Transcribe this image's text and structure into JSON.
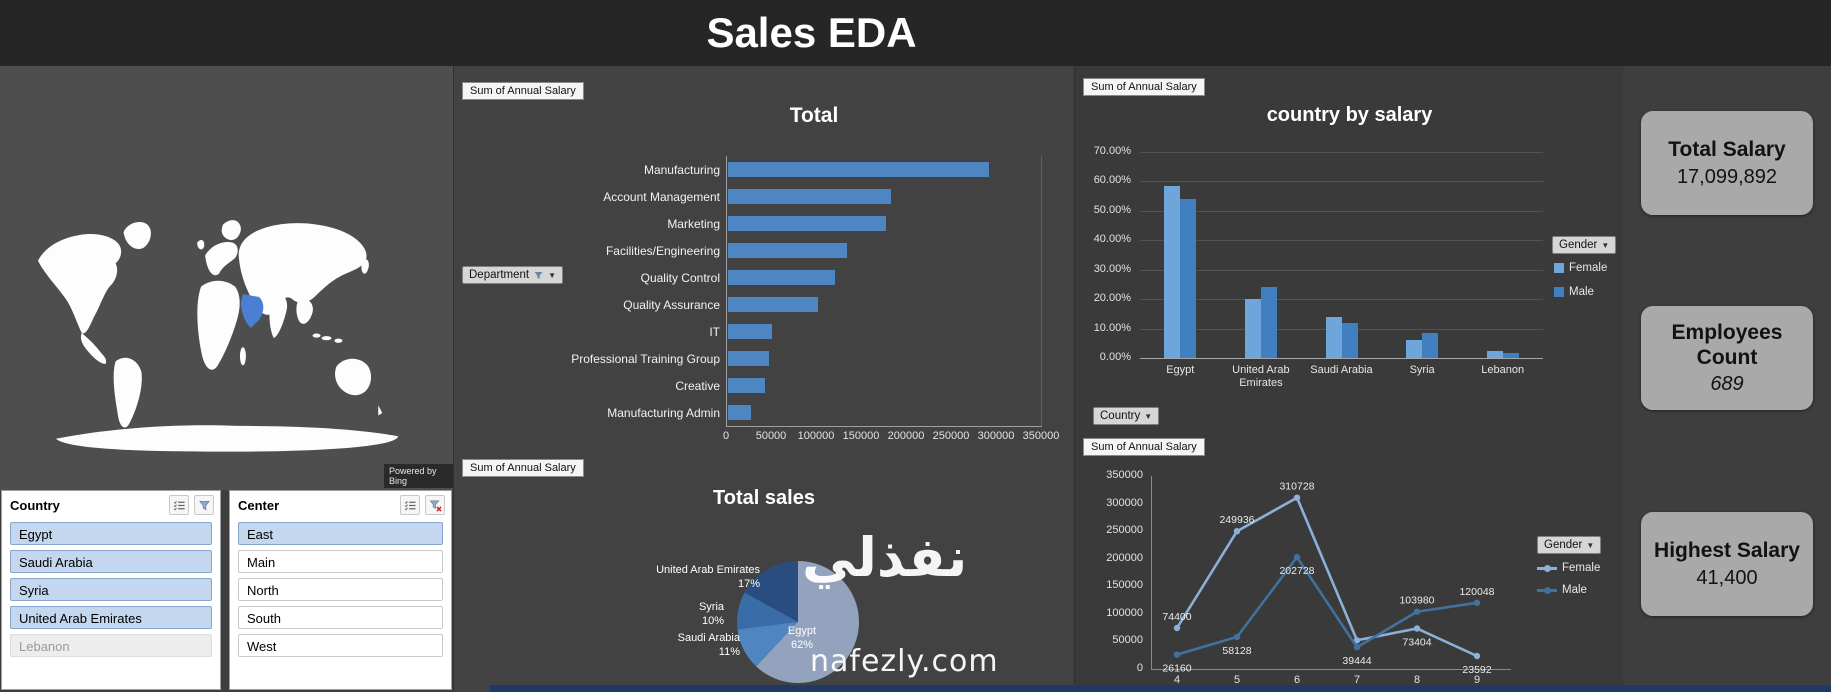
{
  "header": {
    "title": "Sales EDA"
  },
  "map": {
    "powered_by": "Powered by Bing",
    "highlight_country": "Saudi Arabia",
    "highlight_color": "#4a7fd4"
  },
  "slicers": [
    {
      "title": "Country",
      "filter_active": false,
      "items": [
        {
          "label": "Egypt",
          "state": "selected"
        },
        {
          "label": "Saudi Arabia",
          "state": "selected"
        },
        {
          "label": "Syria",
          "state": "selected"
        },
        {
          "label": "United Arab Emirates",
          "state": "selected"
        },
        {
          "label": "Lebanon",
          "state": "disabled"
        }
      ]
    },
    {
      "title": "Center",
      "filter_active": true,
      "items": [
        {
          "label": "East",
          "state": "selected"
        },
        {
          "label": "Main",
          "state": "unselected"
        },
        {
          "label": "North",
          "state": "unselected"
        },
        {
          "label": "South",
          "state": "unselected"
        },
        {
          "label": "West",
          "state": "unselected"
        }
      ]
    }
  ],
  "kpis": [
    {
      "title": "Total Salary",
      "value": "17,099,892"
    },
    {
      "title": "Employees Count",
      "value": "689"
    },
    {
      "title": "Highest Salary",
      "value": "41,400"
    }
  ],
  "watermark": {
    "arabic": "نفذلي",
    "domain": "nafezly.com"
  },
  "chart_data": [
    {
      "id": "department_salary",
      "type": "bar",
      "orientation": "horizontal",
      "title": "Total",
      "field_label": "Sum of Annual Salary",
      "filter_button": "Department",
      "categories": [
        "Manufacturing",
        "Account Management",
        "Marketing",
        "Facilities/Engineering",
        "Quality Control",
        "Quality Assurance",
        "IT",
        "Professional Training Group",
        "Creative",
        "Manufacturing Admin"
      ],
      "values": [
        290000,
        181000,
        175000,
        132000,
        119000,
        100000,
        49000,
        45000,
        41000,
        26000
      ],
      "xlim": [
        0,
        350000
      ],
      "x_ticks": [
        "0",
        "50000",
        "100000",
        "150000",
        "200000",
        "250000",
        "300000",
        "350000"
      ],
      "bar_color": "#4e86c4",
      "grid": false
    },
    {
      "id": "country_by_salary",
      "type": "bar",
      "orientation": "vertical",
      "title": "country by salary",
      "field_label": "Sum of Annual Salary",
      "legend_button": "Gender",
      "axis_button": "Country",
      "categories": [
        "Egypt",
        "United Arab Emirates",
        "Saudi Arabia",
        "Syria",
        "Lebanon"
      ],
      "series": [
        {
          "name": "Female",
          "color": "#6ea6dc",
          "values": [
            58.5,
            20,
            14,
            6,
            2.5
          ]
        },
        {
          "name": "Male",
          "color": "#4080c0",
          "values": [
            54,
            24,
            12,
            8.5,
            1.6
          ]
        }
      ],
      "ylim": [
        0,
        70
      ],
      "value_unit": "%",
      "y_ticks": [
        "70.00%",
        "60.00%",
        "50.00%",
        "40.00%",
        "30.00%",
        "20.00%",
        "10.00%",
        "0.00%"
      ],
      "grid": true,
      "legend_position": "right"
    },
    {
      "id": "total_sales",
      "type": "pie",
      "title": "Total sales",
      "field_label": "Sum of Annual Salary",
      "slices": [
        {
          "label": "Egypt",
          "pct": 62,
          "pct_label": "62%",
          "color": "#93a3bd"
        },
        {
          "label": "Saudi Arabia",
          "pct": 11,
          "pct_label": "11%",
          "color": "#4f86c2"
        },
        {
          "label": "Syria",
          "pct": 10,
          "pct_label": "10%",
          "color": "#3a6ca8"
        },
        {
          "label": "United Arab Emirates",
          "pct": 17,
          "pct_label": "17%",
          "color": "#2a4d80"
        }
      ]
    },
    {
      "id": "salary_by_gender_line",
      "type": "line",
      "field_label": "Sum of Annual Salary",
      "legend_button": "Gender",
      "x": [
        "4",
        "5",
        "6",
        "7",
        "8",
        "9"
      ],
      "ylim": [
        0,
        350000
      ],
      "y_ticks": [
        "350000",
        "300000",
        "250000",
        "200000",
        "150000",
        "100000",
        "50000",
        "0"
      ],
      "series": [
        {
          "name": "Female",
          "color": "#8cb0d8",
          "values": [
            74400,
            249936,
            310728,
            52000,
            73404,
            23592
          ],
          "labels": [
            "74400",
            "249936",
            "310728",
            "",
            "73404",
            "23592"
          ],
          "label_pos": [
            "above",
            "above",
            "above",
            "none",
            "below",
            "below"
          ]
        },
        {
          "name": "Male",
          "color": "#41719c",
          "values": [
            26160,
            58128,
            202728,
            39444,
            103980,
            120048
          ],
          "labels": [
            "26160",
            "58128",
            "202728",
            "39444",
            "103980",
            "120048"
          ],
          "label_pos": [
            "below",
            "below",
            "below",
            "below",
            "above",
            "above"
          ]
        }
      ],
      "legend_position": "right"
    }
  ]
}
